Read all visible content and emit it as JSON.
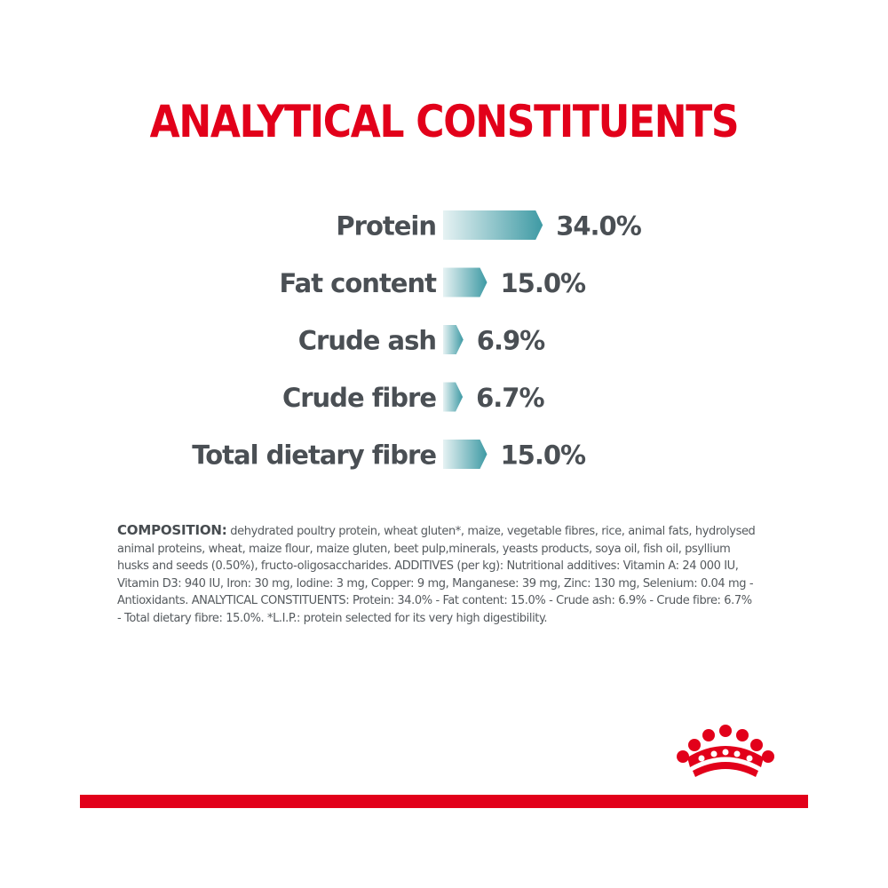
{
  "title": "ANALYTICAL CONSTITUENTS",
  "colors": {
    "accent_red": "#e2001a",
    "bar_start": "#e6f2f3",
    "bar_end": "#3e9aa4",
    "label_gray": "#4a4f54"
  },
  "chart_data": {
    "type": "bar",
    "orientation": "horizontal",
    "categories": [
      "Protein",
      "Fat content",
      "Crude ash",
      "Crude fibre",
      "Total dietary fibre"
    ],
    "values": [
      34.0,
      15.0,
      6.9,
      6.7,
      15.0
    ],
    "value_labels": [
      "34.0%",
      "15.0%",
      "6.9%",
      "6.7%",
      "15.0%"
    ],
    "unit": "%"
  },
  "composition": {
    "label": "COMPOSITION:",
    "text": " dehydrated poultry protein, wheat gluten*, maize, vegetable fibres, rice, animal fats, hydrolysed animal proteins, wheat, maize flour, maize gluten, beet pulp,minerals, yeasts products, soya oil, fish oil, psyllium husks and seeds (0.50%), fructo-oligosaccharides. ADDITIVES (per kg): Nutritional additives: Vitamin A:  24 000 IU, Vitamin D3: 940 IU, Iron: 30 mg, Iodine: 3 mg, Copper: 9 mg, Manganese: 39 mg, Zinc: 130 mg, Selenium: 0.04 mg - Antioxidants. ANALYTICAL CONSTITUENTS: Protein: 34.0% - Fat content: 15.0% - Crude ash: 6.9% - Crude fibre: 6.7% - Total dietary fibre: 15.0%. *L.I.P.: protein selected for its very high digestibility."
  }
}
